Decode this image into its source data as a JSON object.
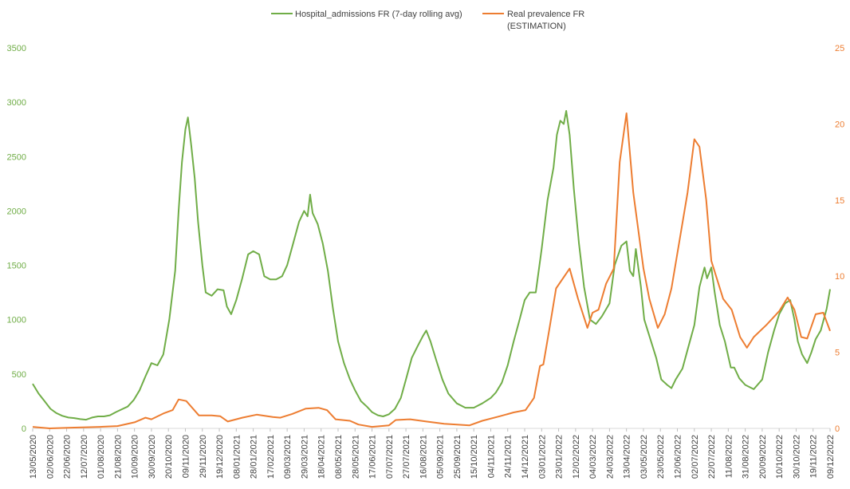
{
  "chart_data": {
    "type": "line",
    "title": "",
    "legend": {
      "placement": "top-center",
      "entries": [
        {
          "label": "Hospital_admissions FR (7-day rolling avg)",
          "color": "#70AD47",
          "series": "hospital"
        },
        {
          "label_lines": [
            "Real prevalence FR",
            "(ESTIMATION)"
          ],
          "color": "#ED7D31",
          "series": "prevalence"
        }
      ]
    },
    "x_axis": {
      "type": "date",
      "range": [
        "2020-05-13",
        "2022-12-09"
      ],
      "tick_labels": [
        "13/05/2020",
        "02/06/2020",
        "22/06/2020",
        "12/07/2020",
        "01/08/2020",
        "21/08/2020",
        "10/09/2020",
        "30/09/2020",
        "20/10/2020",
        "09/11/2020",
        "29/11/2020",
        "19/12/2020",
        "08/01/2021",
        "28/01/2021",
        "17/02/2021",
        "09/03/2021",
        "29/03/2021",
        "18/04/2021",
        "08/05/2021",
        "28/05/2021",
        "17/06/2021",
        "07/07/2021",
        "27/07/2021",
        "16/08/2021",
        "05/09/2021",
        "25/09/2021",
        "15/10/2021",
        "04/11/2021",
        "24/11/2021",
        "14/12/2021",
        "03/01/2022",
        "23/01/2022",
        "12/02/2022",
        "04/03/2022",
        "24/03/2022",
        "13/04/2022",
        "03/05/2022",
        "23/05/2022",
        "12/06/2022",
        "02/07/2022",
        "22/07/2022",
        "11/08/2022",
        "31/08/2022",
        "20/09/2022",
        "10/10/2022",
        "30/10/2022",
        "19/11/2022",
        "09/12/2022"
      ]
    },
    "y_axis_left": {
      "range": [
        0,
        3500
      ],
      "ticks": [
        0,
        500,
        1000,
        1500,
        2000,
        2500,
        3000,
        3500
      ],
      "tick_labels": [
        "0",
        "500",
        "1000",
        "1500",
        "2000",
        "2500",
        "3000",
        "3500"
      ],
      "color": "#70AD47"
    },
    "y_axis_right": {
      "range": [
        0,
        25
      ],
      "ticks": [
        0,
        5,
        10,
        15,
        20,
        25
      ],
      "tick_labels": [
        "0",
        "5",
        "10",
        "15",
        "20",
        "25"
      ],
      "color": "#ED7D31"
    },
    "grid": false,
    "series": [
      {
        "name": "Hospital_admissions FR (7-day rolling avg)",
        "axis": "left",
        "color": "#70AD47",
        "points": [
          [
            "2020-05-13",
            410
          ],
          [
            "2020-05-20",
            320
          ],
          [
            "2020-05-27",
            250
          ],
          [
            "2020-06-03",
            180
          ],
          [
            "2020-06-10",
            140
          ],
          [
            "2020-06-17",
            115
          ],
          [
            "2020-06-24",
            100
          ],
          [
            "2020-07-01",
            95
          ],
          [
            "2020-07-08",
            85
          ],
          [
            "2020-07-15",
            80
          ],
          [
            "2020-07-22",
            100
          ],
          [
            "2020-07-29",
            110
          ],
          [
            "2020-08-05",
            110
          ],
          [
            "2020-08-12",
            120
          ],
          [
            "2020-08-19",
            150
          ],
          [
            "2020-08-26",
            175
          ],
          [
            "2020-09-02",
            200
          ],
          [
            "2020-09-09",
            260
          ],
          [
            "2020-09-16",
            350
          ],
          [
            "2020-09-23",
            480
          ],
          [
            "2020-09-30",
            600
          ],
          [
            "2020-10-07",
            580
          ],
          [
            "2020-10-14",
            680
          ],
          [
            "2020-10-21",
            1000
          ],
          [
            "2020-10-28",
            1450
          ],
          [
            "2020-11-01",
            2000
          ],
          [
            "2020-11-05",
            2450
          ],
          [
            "2020-11-09",
            2750
          ],
          [
            "2020-11-12",
            2860
          ],
          [
            "2020-11-16",
            2600
          ],
          [
            "2020-11-20",
            2300
          ],
          [
            "2020-11-24",
            1900
          ],
          [
            "2020-11-29",
            1500
          ],
          [
            "2020-12-03",
            1250
          ],
          [
            "2020-12-10",
            1220
          ],
          [
            "2020-12-17",
            1280
          ],
          [
            "2020-12-24",
            1270
          ],
          [
            "2020-12-28",
            1120
          ],
          [
            "2021-01-02",
            1050
          ],
          [
            "2021-01-08",
            1180
          ],
          [
            "2021-01-15",
            1380
          ],
          [
            "2021-01-22",
            1600
          ],
          [
            "2021-01-28",
            1630
          ],
          [
            "2021-02-04",
            1600
          ],
          [
            "2021-02-10",
            1400
          ],
          [
            "2021-02-17",
            1370
          ],
          [
            "2021-02-24",
            1370
          ],
          [
            "2021-03-03",
            1400
          ],
          [
            "2021-03-09",
            1500
          ],
          [
            "2021-03-16",
            1700
          ],
          [
            "2021-03-23",
            1900
          ],
          [
            "2021-03-29",
            2000
          ],
          [
            "2021-04-02",
            1950
          ],
          [
            "2021-04-05",
            2150
          ],
          [
            "2021-04-08",
            1980
          ],
          [
            "2021-04-14",
            1880
          ],
          [
            "2021-04-20",
            1700
          ],
          [
            "2021-04-26",
            1450
          ],
          [
            "2021-05-02",
            1100
          ],
          [
            "2021-05-08",
            800
          ],
          [
            "2021-05-15",
            600
          ],
          [
            "2021-05-22",
            450
          ],
          [
            "2021-05-28",
            350
          ],
          [
            "2021-06-04",
            250
          ],
          [
            "2021-06-11",
            200
          ],
          [
            "2021-06-17",
            150
          ],
          [
            "2021-06-24",
            120
          ],
          [
            "2021-06-30",
            110
          ],
          [
            "2021-07-07",
            130
          ],
          [
            "2021-07-14",
            180
          ],
          [
            "2021-07-21",
            280
          ],
          [
            "2021-07-27",
            450
          ],
          [
            "2021-08-03",
            650
          ],
          [
            "2021-08-10",
            760
          ],
          [
            "2021-08-16",
            850
          ],
          [
            "2021-08-20",
            900
          ],
          [
            "2021-08-25",
            800
          ],
          [
            "2021-09-01",
            620
          ],
          [
            "2021-09-08",
            450
          ],
          [
            "2021-09-15",
            320
          ],
          [
            "2021-09-25",
            230
          ],
          [
            "2021-10-05",
            190
          ],
          [
            "2021-10-15",
            190
          ],
          [
            "2021-10-25",
            230
          ],
          [
            "2021-11-04",
            280
          ],
          [
            "2021-11-10",
            330
          ],
          [
            "2021-11-17",
            420
          ],
          [
            "2021-11-24",
            580
          ],
          [
            "2021-12-01",
            800
          ],
          [
            "2021-12-08",
            1000
          ],
          [
            "2021-12-14",
            1180
          ],
          [
            "2021-12-20",
            1250
          ],
          [
            "2021-12-27",
            1250
          ],
          [
            "2022-01-03",
            1650
          ],
          [
            "2022-01-10",
            2100
          ],
          [
            "2022-01-17",
            2400
          ],
          [
            "2022-01-21",
            2700
          ],
          [
            "2022-01-25",
            2830
          ],
          [
            "2022-01-29",
            2800
          ],
          [
            "2022-02-01",
            2920
          ],
          [
            "2022-02-05",
            2700
          ],
          [
            "2022-02-10",
            2200
          ],
          [
            "2022-02-16",
            1700
          ],
          [
            "2022-02-22",
            1300
          ],
          [
            "2022-03-01",
            1000
          ],
          [
            "2022-03-08",
            960
          ],
          [
            "2022-03-15",
            1030
          ],
          [
            "2022-03-24",
            1150
          ],
          [
            "2022-03-30",
            1500
          ],
          [
            "2022-04-07",
            1680
          ],
          [
            "2022-04-13",
            1720
          ],
          [
            "2022-04-17",
            1450
          ],
          [
            "2022-04-21",
            1400
          ],
          [
            "2022-04-24",
            1650
          ],
          [
            "2022-04-30",
            1300
          ],
          [
            "2022-05-04",
            1000
          ],
          [
            "2022-05-10",
            850
          ],
          [
            "2022-05-18",
            650
          ],
          [
            "2022-05-24",
            450
          ],
          [
            "2022-05-31",
            400
          ],
          [
            "2022-06-05",
            370
          ],
          [
            "2022-06-10",
            450
          ],
          [
            "2022-06-18",
            550
          ],
          [
            "2022-06-25",
            750
          ],
          [
            "2022-07-02",
            950
          ],
          [
            "2022-07-08",
            1300
          ],
          [
            "2022-07-14",
            1480
          ],
          [
            "2022-07-17",
            1380
          ],
          [
            "2022-07-22",
            1480
          ],
          [
            "2022-07-26",
            1250
          ],
          [
            "2022-08-01",
            950
          ],
          [
            "2022-08-07",
            800
          ],
          [
            "2022-08-14",
            560
          ],
          [
            "2022-08-18",
            560
          ],
          [
            "2022-08-24",
            460
          ],
          [
            "2022-08-31",
            400
          ],
          [
            "2022-09-10",
            360
          ],
          [
            "2022-09-20",
            450
          ],
          [
            "2022-09-27",
            700
          ],
          [
            "2022-10-04",
            900
          ],
          [
            "2022-10-10",
            1050
          ],
          [
            "2022-10-17",
            1150
          ],
          [
            "2022-10-23",
            1180
          ],
          [
            "2022-10-28",
            1000
          ],
          [
            "2022-11-01",
            800
          ],
          [
            "2022-11-06",
            680
          ],
          [
            "2022-11-12",
            600
          ],
          [
            "2022-11-17",
            700
          ],
          [
            "2022-11-22",
            820
          ],
          [
            "2022-11-28",
            900
          ],
          [
            "2022-12-05",
            1100
          ],
          [
            "2022-12-09",
            1280
          ]
        ]
      },
      {
        "name": "Real prevalence FR (ESTIMATION)",
        "axis": "right",
        "color": "#ED7D31",
        "points": [
          [
            "2020-05-13",
            0.1
          ],
          [
            "2020-06-02",
            0.0
          ],
          [
            "2020-07-01",
            0.05
          ],
          [
            "2020-08-01",
            0.1
          ],
          [
            "2020-08-21",
            0.15
          ],
          [
            "2020-09-10",
            0.4
          ],
          [
            "2020-09-23",
            0.7
          ],
          [
            "2020-09-30",
            0.6
          ],
          [
            "2020-10-15",
            1.0
          ],
          [
            "2020-10-25",
            1.2
          ],
          [
            "2020-11-01",
            1.9
          ],
          [
            "2020-11-10",
            1.8
          ],
          [
            "2020-11-25",
            0.85
          ],
          [
            "2020-12-10",
            0.85
          ],
          [
            "2020-12-20",
            0.8
          ],
          [
            "2020-12-29",
            0.45
          ],
          [
            "2021-01-15",
            0.7
          ],
          [
            "2021-02-01",
            0.9
          ],
          [
            "2021-02-20",
            0.75
          ],
          [
            "2021-03-01",
            0.7
          ],
          [
            "2021-03-15",
            0.95
          ],
          [
            "2021-03-31",
            1.3
          ],
          [
            "2021-04-15",
            1.35
          ],
          [
            "2021-04-25",
            1.2
          ],
          [
            "2021-05-05",
            0.6
          ],
          [
            "2021-05-22",
            0.5
          ],
          [
            "2021-06-01",
            0.25
          ],
          [
            "2021-06-17",
            0.1
          ],
          [
            "2021-07-07",
            0.2
          ],
          [
            "2021-07-15",
            0.55
          ],
          [
            "2021-08-01",
            0.6
          ],
          [
            "2021-08-20",
            0.45
          ],
          [
            "2021-09-10",
            0.3
          ],
          [
            "2021-10-10",
            0.2
          ],
          [
            "2021-10-25",
            0.5
          ],
          [
            "2021-11-15",
            0.8
          ],
          [
            "2021-12-01",
            1.05
          ],
          [
            "2021-12-15",
            1.2
          ],
          [
            "2021-12-25",
            2.0
          ],
          [
            "2022-01-01",
            4.1
          ],
          [
            "2022-01-05",
            4.2
          ],
          [
            "2022-01-12",
            6.5
          ],
          [
            "2022-01-20",
            9.2
          ],
          [
            "2022-02-05",
            10.5
          ],
          [
            "2022-02-15",
            8.5
          ],
          [
            "2022-02-26",
            6.6
          ],
          [
            "2022-03-04",
            7.6
          ],
          [
            "2022-03-11",
            7.8
          ],
          [
            "2022-03-20",
            9.5
          ],
          [
            "2022-03-29",
            10.5
          ],
          [
            "2022-04-05",
            17.5
          ],
          [
            "2022-04-13",
            20.7
          ],
          [
            "2022-04-21",
            15.5
          ],
          [
            "2022-05-03",
            10.5
          ],
          [
            "2022-05-10",
            8.5
          ],
          [
            "2022-05-20",
            6.6
          ],
          [
            "2022-05-28",
            7.5
          ],
          [
            "2022-06-05",
            9.2
          ],
          [
            "2022-06-15",
            12.5
          ],
          [
            "2022-06-24",
            15.5
          ],
          [
            "2022-07-02",
            19.0
          ],
          [
            "2022-07-08",
            18.5
          ],
          [
            "2022-07-16",
            15.0
          ],
          [
            "2022-07-22",
            11.0
          ],
          [
            "2022-08-05",
            8.5
          ],
          [
            "2022-08-15",
            7.8
          ],
          [
            "2022-08-25",
            6.0
          ],
          [
            "2022-09-02",
            5.3
          ],
          [
            "2022-09-10",
            6.0
          ],
          [
            "2022-09-25",
            6.8
          ],
          [
            "2022-10-10",
            7.7
          ],
          [
            "2022-10-20",
            8.6
          ],
          [
            "2022-10-28",
            7.8
          ],
          [
            "2022-11-05",
            6.0
          ],
          [
            "2022-11-12",
            5.9
          ],
          [
            "2022-11-22",
            7.5
          ],
          [
            "2022-12-01",
            7.6
          ],
          [
            "2022-12-09",
            6.4
          ]
        ]
      }
    ]
  }
}
